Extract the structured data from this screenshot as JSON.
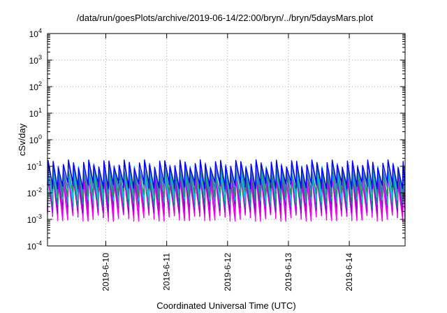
{
  "chart_data": {
    "type": "line",
    "title": "/data/run/goesPlots/archive/2019-06-14/22:00/bryn/../bryn/5daysMars.plot",
    "xlabel": "Coordinated Universal Time (UTC)",
    "ylabel": "cSv/day",
    "yscale": "log",
    "ylim": [
      0.0001,
      10000
    ],
    "y_ticks": [
      {
        "base": "10",
        "exp": "-4",
        "value": 0.0001
      },
      {
        "base": "10",
        "exp": "-3",
        "value": 0.001
      },
      {
        "base": "10",
        "exp": "-2",
        "value": 0.01
      },
      {
        "base": "10",
        "exp": "-1",
        "value": 0.1
      },
      {
        "base": "10",
        "exp": "0",
        "value": 1
      },
      {
        "base": "10",
        "exp": "1",
        "value": 10
      },
      {
        "base": "10",
        "exp": "2",
        "value": 100
      },
      {
        "base": "10",
        "exp": "3",
        "value": 1000
      },
      {
        "base": "10",
        "exp": "4",
        "value": 10000
      }
    ],
    "xlim": [
      "2019-06-09 01:00",
      "2019-06-14 22:00"
    ],
    "x_ticks": [
      "2019-6-10",
      "2019-6-11",
      "2019-6-12",
      "2019-6-13",
      "2019-6-14"
    ],
    "grid": true,
    "legend": "none",
    "pattern": {
      "period_hours": 2,
      "peak_range": [
        0.05,
        0.15
      ],
      "trough_range": [
        0.001,
        0.003
      ]
    },
    "series": [
      {
        "color": "#ff00ff",
        "peak": 0.035,
        "trough": 0.0012
      },
      {
        "color": "#e000e0",
        "peak": 0.03,
        "trough": 0.0016
      },
      {
        "color": "#9400d3",
        "peak": 0.05,
        "trough": 0.0025
      },
      {
        "color": "#008b8b",
        "peak": 0.06,
        "trough": 0.004
      },
      {
        "color": "#20b2aa",
        "peak": 0.07,
        "trough": 0.006
      },
      {
        "color": "#00bfff",
        "peak": 0.075,
        "trough": 0.008
      },
      {
        "color": "#2e8b57",
        "peak": 0.08,
        "trough": 0.01
      },
      {
        "color": "#4169e1",
        "peak": 0.11,
        "trough": 0.015
      },
      {
        "color": "#0000ff",
        "peak": 0.13,
        "trough": 0.02
      }
    ]
  }
}
